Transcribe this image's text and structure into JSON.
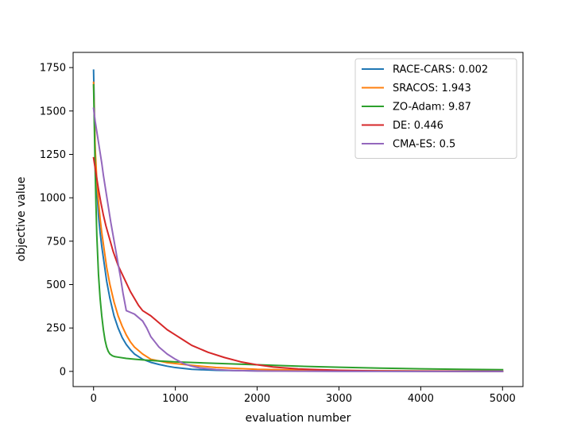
{
  "chart_data": {
    "type": "line",
    "title": "",
    "xlabel": "evaluation number",
    "ylabel": "objective value",
    "xlim": [
      -250,
      5250
    ],
    "ylim": [
      -87.5,
      1837.5
    ],
    "xticks": [
      0,
      1000,
      2000,
      3000,
      4000,
      5000
    ],
    "yticks": [
      0,
      250,
      500,
      750,
      1000,
      1250,
      1500,
      1750
    ],
    "grid": false,
    "legend_position": "top-right",
    "series": [
      {
        "name": "RACE-CARS: 0.002",
        "color": "#1f77b4",
        "x": [
          0,
          20,
          40,
          60,
          80,
          100,
          130,
          160,
          200,
          250,
          300,
          350,
          400,
          450,
          500,
          600,
          700,
          800,
          900,
          1000,
          1200,
          1500,
          2000,
          2500,
          3000,
          3500,
          4000,
          4500,
          5000
        ],
        "y": [
          1735,
          1250,
          1050,
          900,
          800,
          720,
          620,
          520,
          420,
          320,
          250,
          195,
          155,
          125,
          100,
          70,
          52,
          40,
          30,
          22,
          12,
          6,
          3,
          2,
          1,
          1,
          0.5,
          0.2,
          0.002
        ]
      },
      {
        "name": "SRACOS: 1.943",
        "color": "#ff7f0e",
        "x": [
          0,
          20,
          40,
          60,
          80,
          100,
          130,
          160,
          200,
          250,
          300,
          350,
          400,
          450,
          500,
          600,
          700,
          800,
          900,
          1000,
          1200,
          1500,
          2000,
          2500,
          3000,
          3500,
          4000,
          4500,
          5000
        ],
        "y": [
          1665,
          1280,
          1100,
          980,
          880,
          800,
          700,
          600,
          500,
          400,
          320,
          260,
          210,
          170,
          140,
          100,
          70,
          60,
          50,
          45,
          35,
          22,
          12,
          8,
          5,
          4,
          3,
          2.5,
          1.943
        ]
      },
      {
        "name": "ZO-Adam: 9.87",
        "color": "#2ca02c",
        "x": [
          0,
          10,
          20,
          30,
          40,
          60,
          80,
          100,
          120,
          140,
          160,
          180,
          200,
          230,
          260,
          300,
          400,
          500,
          600,
          800,
          1000,
          1500,
          2000,
          2500,
          3000,
          3500,
          4000,
          4500,
          5000
        ],
        "y": [
          1650,
          1400,
          1150,
          950,
          780,
          560,
          420,
          320,
          240,
          180,
          140,
          115,
          100,
          90,
          85,
          82,
          75,
          70,
          66,
          60,
          55,
          46,
          38,
          30,
          24,
          19,
          15,
          12,
          9.87
        ]
      },
      {
        "name": "DE: 0.446",
        "color": "#d62728",
        "x": [
          0,
          30,
          60,
          90,
          120,
          150,
          180,
          210,
          240,
          270,
          300,
          350,
          400,
          450,
          500,
          550,
          600,
          700,
          800,
          900,
          1000,
          1100,
          1200,
          1400,
          1600,
          1800,
          2000,
          2200,
          2500,
          3000,
          3500,
          4000,
          4500,
          5000
        ],
        "y": [
          1230,
          1140,
          1050,
          970,
          900,
          840,
          790,
          740,
          690,
          650,
          610,
          560,
          510,
          460,
          420,
          380,
          350,
          320,
          280,
          240,
          210,
          180,
          150,
          110,
          80,
          55,
          38,
          25,
          14,
          6,
          2.5,
          1.2,
          0.7,
          0.446
        ]
      },
      {
        "name": "CMA-ES: 0.5",
        "color": "#9467bd",
        "x": [
          0,
          20,
          40,
          60,
          80,
          100,
          120,
          150,
          180,
          210,
          240,
          270,
          300,
          330,
          360,
          400,
          450,
          500,
          550,
          600,
          650,
          700,
          750,
          800,
          900,
          1000,
          1100,
          1200,
          1300,
          1500,
          1700,
          2000,
          2500,
          3000,
          4000,
          5000
        ],
        "y": [
          1515,
          1440,
          1380,
          1320,
          1260,
          1200,
          1130,
          1040,
          950,
          860,
          780,
          700,
          620,
          540,
          450,
          350,
          340,
          330,
          310,
          290,
          250,
          200,
          170,
          140,
          100,
          70,
          45,
          30,
          20,
          10,
          5,
          2,
          1,
          0.7,
          0.55,
          0.5
        ]
      }
    ]
  }
}
